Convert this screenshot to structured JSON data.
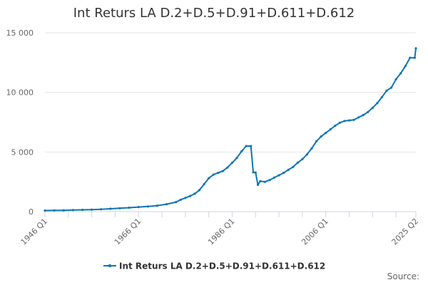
{
  "chart_data": {
    "type": "line",
    "title": "Int Returs LA D.2+D.5+D.91+D.611+D.612",
    "xlabel": "",
    "ylabel": "",
    "series": [
      {
        "name": "Int Returs LA D.2+D.5+D.91+D.611+D.612",
        "color": "#0d75b3",
        "x": [
          "1946 Q1",
          "1948 Q1",
          "1950 Q1",
          "1952 Q1",
          "1954 Q1",
          "1956 Q1",
          "1958 Q1",
          "1960 Q1",
          "1962 Q1",
          "1964 Q1",
          "1966 Q1",
          "1968 Q1",
          "1970 Q1",
          "1972 Q1",
          "1974 Q1",
          "1975 Q1",
          "1976 Q1",
          "1977 Q1",
          "1978 Q1",
          "1979 Q1",
          "1980 Q1",
          "1981 Q1",
          "1982 Q1",
          "1983 Q1",
          "1984 Q1",
          "1985 Q1",
          "1986 Q1",
          "1987 Q1",
          "1988 Q1",
          "1989 Q1",
          "1990 Q1",
          "1990 Q3",
          "1991 Q1",
          "1991 Q3",
          "1992 Q1",
          "1993 Q1",
          "1994 Q1",
          "1995 Q1",
          "1996 Q1",
          "1997 Q1",
          "1998 Q1",
          "1999 Q1",
          "2000 Q1",
          "2001 Q1",
          "2002 Q1",
          "2003 Q1",
          "2004 Q1",
          "2005 Q1",
          "2006 Q1",
          "2007 Q1",
          "2008 Q1",
          "2009 Q1",
          "2010 Q1",
          "2011 Q1",
          "2012 Q1",
          "2013 Q1",
          "2014 Q1",
          "2015 Q1",
          "2016 Q1",
          "2017 Q1",
          "2018 Q1",
          "2019 Q1",
          "2020 Q1",
          "2021 Q1",
          "2022 Q1",
          "2023 Q1",
          "2024 Q1",
          "2025 Q1",
          "2025 Q2"
        ],
        "y": [
          90,
          100,
          110,
          130,
          150,
          170,
          200,
          240,
          280,
          330,
          380,
          430,
          500,
          620,
          800,
          1000,
          1150,
          1300,
          1500,
          1800,
          2300,
          2800,
          3100,
          3250,
          3400,
          3700,
          4100,
          4500,
          5050,
          5500,
          5500,
          3300,
          3280,
          2250,
          2550,
          2500,
          2650,
          2850,
          3050,
          3250,
          3500,
          3750,
          4100,
          4400,
          4800,
          5300,
          5900,
          6300,
          6600,
          6900,
          7200,
          7450,
          7600,
          7650,
          7700,
          7900,
          8100,
          8350,
          8700,
          9100,
          9600,
          10150,
          10400,
          11100,
          11600,
          12200,
          12900,
          12900,
          13700
        ]
      }
    ],
    "x_ticks": [
      "1946 Q1",
      "1966 Q1",
      "1986 Q1",
      "2006 Q1",
      "2025 Q2"
    ],
    "y_ticks": [
      0,
      5000,
      10000,
      15000
    ],
    "y_tick_labels": [
      "0",
      "5 000",
      "10 000",
      "15 000"
    ],
    "ylim": [
      0,
      15000
    ],
    "grid": "horizontal",
    "legend_position": "bottom"
  },
  "source_label": "Source:"
}
